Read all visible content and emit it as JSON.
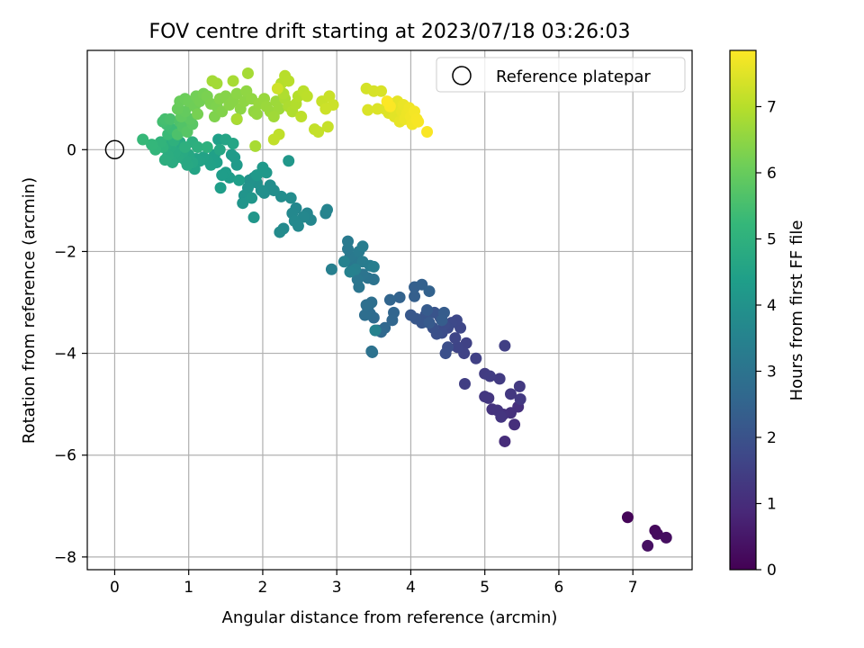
{
  "chart_data": {
    "type": "scatter",
    "title": "FOV centre drift starting at 2023/07/18 03:26:03",
    "xlabel": "Angular distance from reference (arcmin)",
    "ylabel": "Rotation from reference (arcmin)",
    "colorbar_label": "Hours from first FF file",
    "xlim": [
      -0.37,
      7.8
    ],
    "ylim": [
      -8.25,
      1.95
    ],
    "clim": [
      0,
      7.85
    ],
    "xticks": [
      0,
      1,
      2,
      3,
      4,
      5,
      6,
      7
    ],
    "yticks": [
      -8,
      -6,
      -4,
      -2,
      0
    ],
    "colorbar_ticks": [
      0,
      1,
      2,
      3,
      4,
      5,
      6,
      7
    ],
    "grid": true,
    "legend": {
      "location": "upper right",
      "entries": [
        {
          "label": "Reference platepar",
          "marker": "open-circle",
          "x": 0,
          "y": 0
        }
      ]
    },
    "colormap": [
      "#440154",
      "#482878",
      "#3e4989",
      "#31688e",
      "#26828e",
      "#1f9e89",
      "#35b779",
      "#6ece58",
      "#b5de2b",
      "#fde725"
    ],
    "reference_point": {
      "x": 0,
      "y": 0
    },
    "points": [
      {
        "x": 6.93,
        "y": -7.22,
        "t": 0.1
      },
      {
        "x": 7.3,
        "y": -7.48,
        "t": 0.18
      },
      {
        "x": 7.33,
        "y": -7.55,
        "t": 0.22
      },
      {
        "x": 7.45,
        "y": -7.62,
        "t": 0.28
      },
      {
        "x": 7.2,
        "y": -7.78,
        "t": 0.34
      },
      {
        "x": 5.27,
        "y": -5.73,
        "t": 1.0
      },
      {
        "x": 5.4,
        "y": -5.4,
        "t": 1.05
      },
      {
        "x": 5.45,
        "y": -5.05,
        "t": 1.08
      },
      {
        "x": 5.35,
        "y": -5.17,
        "t": 1.1
      },
      {
        "x": 5.25,
        "y": -5.2,
        "t": 1.13
      },
      {
        "x": 5.1,
        "y": -5.1,
        "t": 1.17
      },
      {
        "x": 5.17,
        "y": -5.12,
        "t": 1.2
      },
      {
        "x": 5.22,
        "y": -5.25,
        "t": 1.22
      },
      {
        "x": 5.05,
        "y": -4.88,
        "t": 1.25
      },
      {
        "x": 5.0,
        "y": -4.85,
        "t": 1.28
      },
      {
        "x": 5.35,
        "y": -4.8,
        "t": 1.3
      },
      {
        "x": 5.48,
        "y": -4.9,
        "t": 1.33
      },
      {
        "x": 5.47,
        "y": -4.65,
        "t": 1.35
      },
      {
        "x": 5.2,
        "y": -4.5,
        "t": 1.38
      },
      {
        "x": 5.0,
        "y": -4.4,
        "t": 1.4
      },
      {
        "x": 5.07,
        "y": -4.45,
        "t": 1.43
      },
      {
        "x": 4.73,
        "y": -4.6,
        "t": 1.46
      },
      {
        "x": 5.27,
        "y": -3.85,
        "t": 1.48
      },
      {
        "x": 4.88,
        "y": -4.1,
        "t": 1.52
      },
      {
        "x": 4.75,
        "y": -3.8,
        "t": 1.55
      },
      {
        "x": 4.72,
        "y": -4.0,
        "t": 1.58
      },
      {
        "x": 4.63,
        "y": -3.88,
        "t": 1.62
      },
      {
        "x": 4.6,
        "y": -3.7,
        "t": 1.65
      },
      {
        "x": 4.67,
        "y": -3.5,
        "t": 1.68
      },
      {
        "x": 4.62,
        "y": -3.35,
        "t": 1.72
      },
      {
        "x": 4.55,
        "y": -3.4,
        "t": 1.75
      },
      {
        "x": 4.5,
        "y": -3.5,
        "t": 1.78
      },
      {
        "x": 4.45,
        "y": -3.45,
        "t": 1.82
      },
      {
        "x": 4.42,
        "y": -3.6,
        "t": 1.85
      },
      {
        "x": 4.5,
        "y": -3.88,
        "t": 1.88
      },
      {
        "x": 4.47,
        "y": -4.0,
        "t": 1.92
      },
      {
        "x": 4.35,
        "y": -3.62,
        "t": 1.95
      },
      {
        "x": 4.3,
        "y": -3.5,
        "t": 1.98
      },
      {
        "x": 4.4,
        "y": -3.3,
        "t": 2.0
      },
      {
        "x": 4.32,
        "y": -3.2,
        "t": 2.05
      },
      {
        "x": 4.2,
        "y": -3.25,
        "t": 2.08
      },
      {
        "x": 4.15,
        "y": -3.4,
        "t": 2.12
      },
      {
        "x": 4.07,
        "y": -3.32,
        "t": 2.15
      },
      {
        "x": 4.0,
        "y": -3.25,
        "t": 2.18
      },
      {
        "x": 4.25,
        "y": -3.4,
        "t": 2.22
      },
      {
        "x": 4.22,
        "y": -3.15,
        "t": 2.25
      },
      {
        "x": 4.45,
        "y": -3.2,
        "t": 2.28
      },
      {
        "x": 4.42,
        "y": -3.35,
        "t": 2.3
      },
      {
        "x": 4.05,
        "y": -2.88,
        "t": 2.35
      },
      {
        "x": 4.05,
        "y": -2.7,
        "t": 2.38
      },
      {
        "x": 4.15,
        "y": -2.65,
        "t": 2.42
      },
      {
        "x": 4.25,
        "y": -2.78,
        "t": 2.45
      },
      {
        "x": 3.85,
        "y": -2.9,
        "t": 2.48
      },
      {
        "x": 3.72,
        "y": -2.95,
        "t": 2.52
      },
      {
        "x": 3.77,
        "y": -3.2,
        "t": 2.55
      },
      {
        "x": 3.75,
        "y": -3.35,
        "t": 2.58
      },
      {
        "x": 3.65,
        "y": -3.5,
        "t": 2.62
      },
      {
        "x": 3.6,
        "y": -3.58,
        "t": 2.65
      },
      {
        "x": 3.55,
        "y": -3.55,
        "t": 2.68
      },
      {
        "x": 3.5,
        "y": -3.3,
        "t": 2.72
      },
      {
        "x": 3.45,
        "y": -3.22,
        "t": 2.75
      },
      {
        "x": 3.42,
        "y": -3.12,
        "t": 2.78
      },
      {
        "x": 3.38,
        "y": -3.25,
        "t": 2.82
      },
      {
        "x": 3.47,
        "y": -3.0,
        "t": 2.85
      },
      {
        "x": 3.4,
        "y": -3.05,
        "t": 2.88
      },
      {
        "x": 3.48,
        "y": -3.98,
        "t": 2.92
      },
      {
        "x": 3.47,
        "y": -3.96,
        "t": 2.94
      },
      {
        "x": 3.5,
        "y": -2.55,
        "t": 2.97
      },
      {
        "x": 3.42,
        "y": -2.52,
        "t": 3.0
      },
      {
        "x": 3.35,
        "y": -2.45,
        "t": 3.03
      },
      {
        "x": 3.3,
        "y": -2.7,
        "t": 3.06
      },
      {
        "x": 3.28,
        "y": -2.55,
        "t": 3.1
      },
      {
        "x": 3.22,
        "y": -2.28,
        "t": 3.12
      },
      {
        "x": 3.25,
        "y": -2.15,
        "t": 3.15
      },
      {
        "x": 3.18,
        "y": -2.1,
        "t": 3.18
      },
      {
        "x": 3.15,
        "y": -1.95,
        "t": 3.2
      },
      {
        "x": 3.15,
        "y": -1.8,
        "t": 3.23
      },
      {
        "x": 3.3,
        "y": -2.0,
        "t": 3.25
      },
      {
        "x": 3.35,
        "y": -2.2,
        "t": 3.28
      },
      {
        "x": 3.45,
        "y": -2.28,
        "t": 3.3
      },
      {
        "x": 3.35,
        "y": -1.9,
        "t": 3.33
      },
      {
        "x": 3.5,
        "y": -2.3,
        "t": 3.36
      },
      {
        "x": 2.93,
        "y": -2.35,
        "t": 3.4
      },
      {
        "x": 3.25,
        "y": -2.35,
        "t": 3.42
      },
      {
        "x": 3.18,
        "y": -2.4,
        "t": 3.45
      },
      {
        "x": 3.1,
        "y": -2.2,
        "t": 3.48
      },
      {
        "x": 3.52,
        "y": -3.55,
        "t": 3.5
      },
      {
        "x": 2.85,
        "y": -1.25,
        "t": 3.52
      },
      {
        "x": 2.87,
        "y": -1.18,
        "t": 3.55
      },
      {
        "x": 2.6,
        "y": -1.25,
        "t": 3.58
      },
      {
        "x": 2.65,
        "y": -1.38,
        "t": 3.6
      },
      {
        "x": 2.55,
        "y": -1.32,
        "t": 3.63
      },
      {
        "x": 2.45,
        "y": -1.15,
        "t": 3.65
      },
      {
        "x": 2.4,
        "y": -1.25,
        "t": 3.68
      },
      {
        "x": 2.43,
        "y": -1.4,
        "t": 3.7
      },
      {
        "x": 2.48,
        "y": -1.5,
        "t": 3.72
      },
      {
        "x": 2.28,
        "y": -1.55,
        "t": 3.75
      },
      {
        "x": 2.23,
        "y": -1.62,
        "t": 3.78
      },
      {
        "x": 2.38,
        "y": -0.95,
        "t": 3.8
      },
      {
        "x": 2.25,
        "y": -0.92,
        "t": 3.82
      },
      {
        "x": 2.15,
        "y": -0.8,
        "t": 3.85
      },
      {
        "x": 2.1,
        "y": -0.7,
        "t": 3.87
      },
      {
        "x": 2.02,
        "y": -0.85,
        "t": 3.9
      },
      {
        "x": 1.98,
        "y": -0.8,
        "t": 3.92
      },
      {
        "x": 1.92,
        "y": -0.65,
        "t": 3.95
      },
      {
        "x": 1.88,
        "y": -0.55,
        "t": 3.97
      },
      {
        "x": 1.82,
        "y": -0.6,
        "t": 4.0
      },
      {
        "x": 1.8,
        "y": -0.75,
        "t": 4.02
      },
      {
        "x": 1.75,
        "y": -0.9,
        "t": 4.05
      },
      {
        "x": 1.73,
        "y": -1.05,
        "t": 4.07
      },
      {
        "x": 1.85,
        "y": -0.95,
        "t": 4.1
      },
      {
        "x": 1.88,
        "y": -1.33,
        "t": 4.12
      },
      {
        "x": 2.35,
        "y": -0.22,
        "t": 4.15
      },
      {
        "x": 2.05,
        "y": -0.45,
        "t": 4.17
      },
      {
        "x": 2.0,
        "y": -0.35,
        "t": 4.2
      },
      {
        "x": 1.92,
        "y": -0.5,
        "t": 4.22
      },
      {
        "x": 1.65,
        "y": -0.3,
        "t": 4.24
      },
      {
        "x": 1.62,
        "y": -0.15,
        "t": 4.26
      },
      {
        "x": 1.58,
        "y": -0.1,
        "t": 4.28
      },
      {
        "x": 1.55,
        "y": -0.55,
        "t": 4.3
      },
      {
        "x": 1.5,
        "y": -0.45,
        "t": 4.32
      },
      {
        "x": 1.45,
        "y": -0.5,
        "t": 4.34
      },
      {
        "x": 1.43,
        "y": -0.75,
        "t": 4.36
      },
      {
        "x": 1.68,
        "y": -0.6,
        "t": 4.38
      },
      {
        "x": 1.4,
        "y": 0.2,
        "t": 4.4
      },
      {
        "x": 1.38,
        "y": -0.25,
        "t": 4.42
      },
      {
        "x": 1.35,
        "y": -0.1,
        "t": 4.44
      },
      {
        "x": 1.3,
        "y": -0.3,
        "t": 4.46
      },
      {
        "x": 1.25,
        "y": -0.2,
        "t": 4.48
      },
      {
        "x": 1.2,
        "y": -0.15,
        "t": 4.5
      },
      {
        "x": 1.15,
        "y": -0.22,
        "t": 4.52
      },
      {
        "x": 1.1,
        "y": -0.18,
        "t": 4.54
      },
      {
        "x": 1.08,
        "y": -0.38,
        "t": 4.56
      },
      {
        "x": 1.5,
        "y": 0.2,
        "t": 4.58
      },
      {
        "x": 1.6,
        "y": 0.12,
        "t": 4.6
      },
      {
        "x": 1.65,
        "y": 0.6,
        "t": 4.62
      },
      {
        "x": 1.42,
        "y": 0.0,
        "t": 4.64
      },
      {
        "x": 1.05,
        "y": -0.25,
        "t": 4.66
      },
      {
        "x": 1.0,
        "y": -0.1,
        "t": 4.68
      },
      {
        "x": 0.98,
        "y": -0.3,
        "t": 4.7
      },
      {
        "x": 0.95,
        "y": -0.2,
        "t": 4.72
      },
      {
        "x": 0.92,
        "y": -0.05,
        "t": 4.74
      },
      {
        "x": 0.88,
        "y": 0.15,
        "t": 4.76
      },
      {
        "x": 0.85,
        "y": -0.15,
        "t": 4.78
      },
      {
        "x": 0.82,
        "y": -0.05,
        "t": 4.8
      },
      {
        "x": 0.78,
        "y": -0.25,
        "t": 4.82
      },
      {
        "x": 0.75,
        "y": 0.05,
        "t": 4.84
      },
      {
        "x": 0.72,
        "y": -0.12,
        "t": 4.86
      },
      {
        "x": 0.7,
        "y": 0.1,
        "t": 4.88
      },
      {
        "x": 0.68,
        "y": -0.2,
        "t": 4.9
      },
      {
        "x": 1.05,
        "y": 0.15,
        "t": 4.92
      },
      {
        "x": 1.12,
        "y": 0.05,
        "t": 4.94
      },
      {
        "x": 0.95,
        "y": 0.05,
        "t": 4.96
      },
      {
        "x": 1.25,
        "y": 0.05,
        "t": 4.98
      },
      {
        "x": 0.8,
        "y": 0.18,
        "t": 5.0
      },
      {
        "x": 0.65,
        "y": 0.05,
        "t": 5.05
      },
      {
        "x": 0.62,
        "y": 0.15,
        "t": 5.1
      },
      {
        "x": 0.55,
        "y": 0.0,
        "t": 5.15
      },
      {
        "x": 0.5,
        "y": 0.1,
        "t": 5.2
      },
      {
        "x": 0.38,
        "y": 0.2,
        "t": 5.25
      },
      {
        "x": 0.72,
        "y": 0.3,
        "t": 5.3
      },
      {
        "x": 0.78,
        "y": 0.4,
        "t": 5.35
      },
      {
        "x": 0.7,
        "y": 0.5,
        "t": 5.4
      },
      {
        "x": 0.65,
        "y": 0.55,
        "t": 5.45
      },
      {
        "x": 0.68,
        "y": 0.6,
        "t": 5.5
      },
      {
        "x": 0.75,
        "y": 0.6,
        "t": 5.55
      },
      {
        "x": 0.85,
        "y": 0.3,
        "t": 5.6
      },
      {
        "x": 0.88,
        "y": 0.55,
        "t": 5.65
      },
      {
        "x": 0.92,
        "y": 0.45,
        "t": 5.7
      },
      {
        "x": 0.98,
        "y": 0.35,
        "t": 5.75
      },
      {
        "x": 1.05,
        "y": 0.5,
        "t": 5.8
      },
      {
        "x": 1.02,
        "y": 0.6,
        "t": 5.85
      },
      {
        "x": 0.9,
        "y": 0.65,
        "t": 5.9
      },
      {
        "x": 0.95,
        "y": 0.75,
        "t": 5.95
      },
      {
        "x": 0.85,
        "y": 0.8,
        "t": 6.0
      },
      {
        "x": 0.88,
        "y": 0.95,
        "t": 6.03
      },
      {
        "x": 0.95,
        "y": 1.0,
        "t": 6.06
      },
      {
        "x": 1.0,
        "y": 0.95,
        "t": 6.09
      },
      {
        "x": 1.08,
        "y": 0.85,
        "t": 6.12
      },
      {
        "x": 1.1,
        "y": 1.05,
        "t": 6.15
      },
      {
        "x": 1.15,
        "y": 0.95,
        "t": 6.18
      },
      {
        "x": 1.2,
        "y": 1.1,
        "t": 6.2
      },
      {
        "x": 1.12,
        "y": 0.7,
        "t": 6.22
      },
      {
        "x": 1.25,
        "y": 1.05,
        "t": 6.25
      },
      {
        "x": 1.3,
        "y": 0.9,
        "t": 6.28
      },
      {
        "x": 1.38,
        "y": 0.85,
        "t": 6.3
      },
      {
        "x": 1.35,
        "y": 0.65,
        "t": 6.32
      },
      {
        "x": 1.45,
        "y": 0.75,
        "t": 6.35
      },
      {
        "x": 1.42,
        "y": 1.0,
        "t": 6.38
      },
      {
        "x": 1.5,
        "y": 1.05,
        "t": 6.4
      },
      {
        "x": 1.55,
        "y": 0.88,
        "t": 6.42
      },
      {
        "x": 1.6,
        "y": 0.95,
        "t": 6.44
      },
      {
        "x": 1.65,
        "y": 1.1,
        "t": 6.46
      },
      {
        "x": 1.7,
        "y": 0.8,
        "t": 6.48
      },
      {
        "x": 1.75,
        "y": 0.95,
        "t": 6.5
      },
      {
        "x": 1.78,
        "y": 1.15,
        "t": 6.52
      },
      {
        "x": 1.85,
        "y": 1.0,
        "t": 6.54
      },
      {
        "x": 1.88,
        "y": 0.75,
        "t": 6.56
      },
      {
        "x": 1.92,
        "y": 0.7,
        "t": 6.58
      },
      {
        "x": 1.95,
        "y": 0.9,
        "t": 6.6
      },
      {
        "x": 2.02,
        "y": 1.0,
        "t": 6.62
      },
      {
        "x": 2.05,
        "y": 0.85,
        "t": 6.64
      },
      {
        "x": 2.1,
        "y": 0.75,
        "t": 6.66
      },
      {
        "x": 2.18,
        "y": 0.95,
        "t": 6.68
      },
      {
        "x": 2.22,
        "y": 0.8,
        "t": 6.7
      },
      {
        "x": 2.15,
        "y": 0.65,
        "t": 6.72
      },
      {
        "x": 1.38,
        "y": 1.3,
        "t": 6.74
      },
      {
        "x": 1.32,
        "y": 1.35,
        "t": 6.76
      },
      {
        "x": 1.8,
        "y": 1.5,
        "t": 6.78
      },
      {
        "x": 1.6,
        "y": 1.35,
        "t": 6.8
      },
      {
        "x": 1.9,
        "y": 0.07,
        "t": 6.82
      },
      {
        "x": 1.65,
        "y": 0.6,
        "t": 6.84
      },
      {
        "x": 2.3,
        "y": 1.0,
        "t": 6.86
      },
      {
        "x": 2.35,
        "y": 0.85,
        "t": 6.88
      },
      {
        "x": 2.28,
        "y": 1.1,
        "t": 6.9
      },
      {
        "x": 2.4,
        "y": 0.75,
        "t": 6.92
      },
      {
        "x": 2.45,
        "y": 0.9,
        "t": 6.94
      },
      {
        "x": 2.48,
        "y": 1.05,
        "t": 6.96
      },
      {
        "x": 2.25,
        "y": 1.3,
        "t": 6.98
      },
      {
        "x": 2.3,
        "y": 1.45,
        "t": 7.0
      },
      {
        "x": 2.35,
        "y": 1.35,
        "t": 7.02
      },
      {
        "x": 2.55,
        "y": 1.15,
        "t": 7.04
      },
      {
        "x": 2.6,
        "y": 1.05,
        "t": 7.06
      },
      {
        "x": 2.52,
        "y": 0.65,
        "t": 7.08
      },
      {
        "x": 2.22,
        "y": 0.3,
        "t": 7.1
      },
      {
        "x": 2.15,
        "y": 0.2,
        "t": 7.12
      },
      {
        "x": 2.7,
        "y": 0.4,
        "t": 7.14
      },
      {
        "x": 2.75,
        "y": 0.35,
        "t": 7.16
      },
      {
        "x": 2.88,
        "y": 0.45,
        "t": 7.18
      },
      {
        "x": 2.8,
        "y": 0.95,
        "t": 7.2
      },
      {
        "x": 2.9,
        "y": 1.05,
        "t": 7.22
      },
      {
        "x": 2.95,
        "y": 0.88,
        "t": 7.24
      },
      {
        "x": 2.85,
        "y": 0.8,
        "t": 7.26
      },
      {
        "x": 2.2,
        "y": 1.2,
        "t": 7.28
      },
      {
        "x": 3.4,
        "y": 1.2,
        "t": 7.35
      },
      {
        "x": 3.5,
        "y": 1.15,
        "t": 7.38
      },
      {
        "x": 3.6,
        "y": 1.15,
        "t": 7.4
      },
      {
        "x": 3.42,
        "y": 0.78,
        "t": 7.42
      },
      {
        "x": 3.55,
        "y": 0.8,
        "t": 7.44
      },
      {
        "x": 3.65,
        "y": 0.8,
        "t": 7.46
      },
      {
        "x": 3.7,
        "y": 0.72,
        "t": 7.48
      },
      {
        "x": 3.75,
        "y": 0.9,
        "t": 7.5
      },
      {
        "x": 3.78,
        "y": 0.65,
        "t": 7.52
      },
      {
        "x": 3.8,
        "y": 0.8,
        "t": 7.54
      },
      {
        "x": 3.82,
        "y": 0.95,
        "t": 7.56
      },
      {
        "x": 3.85,
        "y": 0.55,
        "t": 7.58
      },
      {
        "x": 3.88,
        "y": 0.75,
        "t": 7.6
      },
      {
        "x": 3.9,
        "y": 0.88,
        "t": 7.62
      },
      {
        "x": 3.92,
        "y": 0.6,
        "t": 7.64
      },
      {
        "x": 3.95,
        "y": 0.72,
        "t": 7.66
      },
      {
        "x": 3.98,
        "y": 0.82,
        "t": 7.68
      },
      {
        "x": 4.0,
        "y": 0.65,
        "t": 7.7
      },
      {
        "x": 4.02,
        "y": 0.5,
        "t": 7.72
      },
      {
        "x": 4.05,
        "y": 0.75,
        "t": 7.74
      },
      {
        "x": 4.08,
        "y": 0.6,
        "t": 7.76
      },
      {
        "x": 4.1,
        "y": 0.55,
        "t": 7.78
      },
      {
        "x": 4.22,
        "y": 0.35,
        "t": 7.8
      },
      {
        "x": 3.72,
        "y": 0.85,
        "t": 7.82
      },
      {
        "x": 3.68,
        "y": 0.95,
        "t": 7.84
      }
    ]
  }
}
